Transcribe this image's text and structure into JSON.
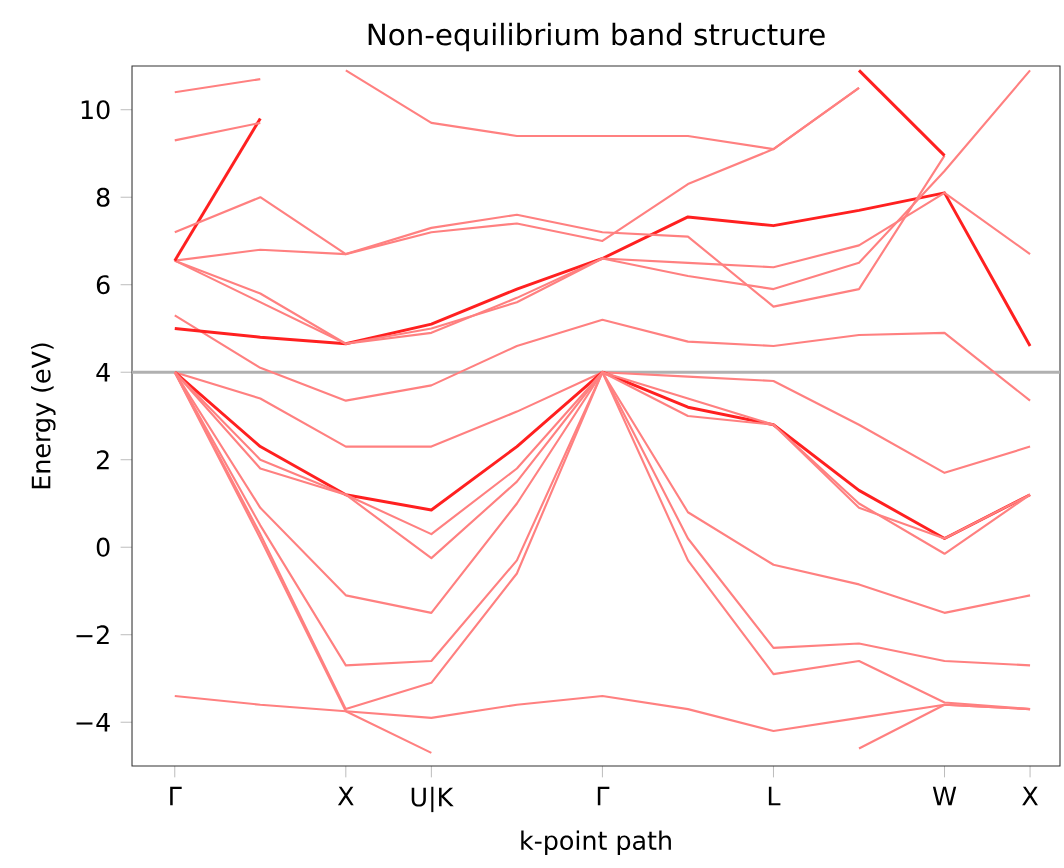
{
  "chart_data": {
    "type": "line",
    "title": "Non-equilibrium band structure",
    "xlabel": "k-point path",
    "ylabel": "Energy (eV)",
    "categories": [
      "Γ",
      null,
      "X",
      "U|K",
      null,
      "Γ",
      null,
      "L",
      null,
      "W",
      "X"
    ],
    "ylim": [
      -5,
      11
    ],
    "yticks": [
      {
        "value": -4,
        "label": "−4"
      },
      {
        "value": -2,
        "label": "−2"
      },
      0,
      2,
      4,
      6,
      8,
      10
    ],
    "grid": false,
    "marker": "none",
    "line_style": "solid",
    "ref_lines": [
      {
        "axis": "y",
        "value": 4,
        "color": "#b0b0b0"
      }
    ],
    "series": [
      {
        "color": "#ff8080",
        "values": [
          -3.4,
          -3.6,
          -3.75,
          -3.9,
          -3.6,
          -3.4,
          -3.7,
          -4.2,
          -3.9,
          -3.6,
          -3.7
        ]
      },
      {
        "color": "#ff8080",
        "values": [
          4.0,
          3.4,
          2.3,
          2.3,
          3.1,
          4.0,
          3.9,
          3.8,
          2.8,
          1.7,
          2.3
        ]
      },
      {
        "color": "#ff2020",
        "values": [
          4.0,
          2.3,
          1.2,
          0.85,
          2.3,
          4.0,
          3.2,
          2.8,
          1.3,
          0.2,
          1.2
        ]
      },
      {
        "color": "#ff8080",
        "values": [
          4.0,
          2.0,
          1.2,
          0.3,
          1.8,
          4.0,
          3.0,
          2.8,
          1.0,
          -0.15,
          1.2
        ]
      },
      {
        "color": "#ff8080",
        "values": [
          4.0,
          1.8,
          1.2,
          -0.25,
          1.5,
          4.0,
          3.4,
          2.8,
          0.9,
          0.2,
          1.2
        ]
      },
      {
        "color": "#ff8080",
        "values": [
          4.0,
          0.9,
          -1.1,
          -1.5,
          1.0,
          4.0,
          0.8,
          -0.4,
          -0.85,
          -1.5,
          -1.1
        ]
      },
      {
        "color": "#ff8080",
        "values": [
          4.0,
          0.5,
          -2.7,
          -2.6,
          -0.3,
          4.0,
          0.2,
          -2.3,
          -2.2,
          -2.6,
          -2.7
        ]
      },
      {
        "color": "#ff8080",
        "values": [
          4.0,
          0.3,
          -3.7,
          -3.1,
          -0.6,
          4.0,
          -0.3,
          -2.9,
          -2.6,
          -3.55,
          -3.7
        ]
      },
      {
        "color": "#ff8080",
        "values": [
          4.0,
          0.2,
          -3.75,
          -4.7,
          null,
          null,
          null,
          null,
          -4.6,
          -3.6,
          -3.7
        ]
      },
      {
        "color": "#ff8080",
        "values": [
          5.3,
          4.1,
          3.35,
          3.7,
          4.6,
          5.2,
          4.7,
          4.6,
          4.85,
          4.9,
          3.35
        ]
      },
      {
        "color": "#ff2020",
        "values": [
          5.0,
          4.8,
          4.65,
          5.1,
          5.9,
          6.6,
          7.55,
          7.35,
          7.7,
          8.1,
          4.6
        ]
      },
      {
        "color": "#ff8080",
        "values": [
          6.55,
          5.8,
          4.65,
          4.9,
          5.7,
          6.6,
          6.5,
          6.4,
          6.9,
          8.1,
          6.7
        ]
      },
      {
        "color": "#ff8080",
        "values": [
          6.55,
          5.6,
          4.65,
          5.0,
          5.6,
          6.6,
          6.2,
          5.9,
          6.5,
          8.6,
          10.9
        ]
      },
      {
        "color": "#ff8080",
        "values": [
          6.55,
          6.8,
          6.7,
          7.3,
          7.6,
          7.2,
          7.1,
          5.5,
          5.9,
          8.95,
          null
        ]
      },
      {
        "color": "#ff2020",
        "values": [
          6.55,
          9.8,
          null,
          null,
          null,
          null,
          null,
          null,
          null,
          null,
          null
        ]
      },
      {
        "color": "#ff8080",
        "values": [
          7.2,
          8.0,
          6.7,
          7.2,
          7.4,
          7.0,
          8.3,
          9.1,
          10.5,
          null,
          null
        ]
      },
      {
        "color": "#ff8080",
        "values": [
          9.3,
          9.7,
          null,
          null,
          null,
          null,
          null,
          null,
          null,
          null,
          null
        ]
      },
      {
        "color": "#ff8080",
        "values": [
          10.4,
          10.7,
          null,
          null,
          null,
          null,
          null,
          null,
          null,
          null,
          null
        ]
      },
      {
        "color": "#ff8080",
        "values": [
          null,
          null,
          10.9,
          9.7,
          9.4,
          9.4,
          9.4,
          9.1,
          10.5,
          null,
          null
        ]
      },
      {
        "color": "#ff2020",
        "values": [
          null,
          null,
          null,
          null,
          null,
          null,
          null,
          null,
          10.9,
          8.95,
          null
        ]
      }
    ]
  }
}
